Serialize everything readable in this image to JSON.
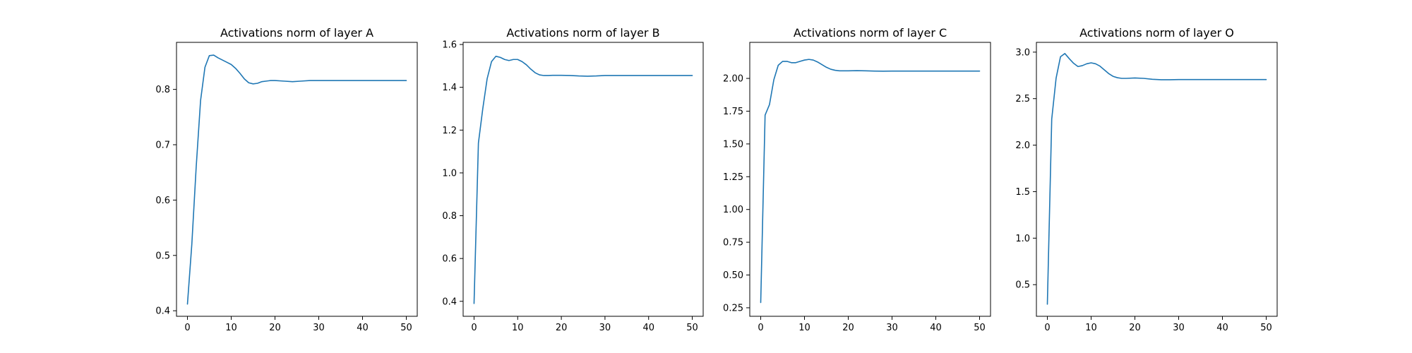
{
  "figure": {
    "line_color": "#1f77b4",
    "axes_color": "#000000",
    "background": "#ffffff"
  },
  "chart_data": [
    {
      "type": "line",
      "title": "Activations norm of layer A",
      "xlabel": "",
      "ylabel": "",
      "xlim": [
        -2.5,
        52.5
      ],
      "ylim": [
        0.39,
        0.885
      ],
      "xticks": [
        0,
        10,
        20,
        30,
        40,
        50
      ],
      "yticks": [
        0.4,
        0.5,
        0.6,
        0.7,
        0.8
      ],
      "ytick_labels": [
        "0.4",
        "0.5",
        "0.6",
        "0.7",
        "0.8"
      ],
      "grid": false,
      "series": [
        {
          "x": [
            0,
            1,
            2,
            3,
            4,
            5,
            6,
            7,
            8,
            9,
            10,
            11,
            12,
            13,
            14,
            15,
            16,
            17,
            18,
            19,
            20,
            22,
            24,
            26,
            28,
            30,
            35,
            40,
            45,
            50
          ],
          "y": [
            0.412,
            0.52,
            0.66,
            0.78,
            0.84,
            0.861,
            0.862,
            0.857,
            0.853,
            0.849,
            0.845,
            0.838,
            0.829,
            0.819,
            0.812,
            0.81,
            0.811,
            0.814,
            0.815,
            0.816,
            0.816,
            0.815,
            0.814,
            0.815,
            0.816,
            0.816,
            0.816,
            0.816,
            0.816,
            0.816
          ]
        }
      ]
    },
    {
      "type": "line",
      "title": "Activations norm of layer B",
      "xlabel": "",
      "ylabel": "",
      "xlim": [
        -2.5,
        52.5
      ],
      "ylim": [
        0.33,
        1.61
      ],
      "xticks": [
        0,
        10,
        20,
        30,
        40,
        50
      ],
      "yticks": [
        0.4,
        0.6,
        0.8,
        1.0,
        1.2,
        1.4,
        1.6
      ],
      "ytick_labels": [
        "0.4",
        "0.6",
        "0.8",
        "1.0",
        "1.2",
        "1.4",
        "1.6"
      ],
      "grid": false,
      "series": [
        {
          "x": [
            0,
            1,
            2,
            3,
            4,
            5,
            6,
            7,
            8,
            9,
            10,
            11,
            12,
            13,
            14,
            15,
            16,
            17,
            18,
            20,
            22,
            24,
            26,
            28,
            30,
            35,
            40,
            45,
            50
          ],
          "y": [
            0.39,
            1.14,
            1.3,
            1.44,
            1.52,
            1.545,
            1.54,
            1.53,
            1.525,
            1.53,
            1.53,
            1.52,
            1.505,
            1.485,
            1.468,
            1.458,
            1.455,
            1.455,
            1.456,
            1.456,
            1.455,
            1.453,
            1.452,
            1.453,
            1.455,
            1.455,
            1.455,
            1.455,
            1.455
          ]
        }
      ]
    },
    {
      "type": "line",
      "title": "Activations norm of layer C",
      "xlabel": "",
      "ylabel": "",
      "xlim": [
        -2.5,
        52.5
      ],
      "ylim": [
        0.185,
        2.275
      ],
      "xticks": [
        0,
        10,
        20,
        30,
        40,
        50
      ],
      "yticks": [
        0.25,
        0.5,
        0.75,
        1.0,
        1.25,
        1.5,
        1.75,
        2.0
      ],
      "ytick_labels": [
        "0.25",
        "0.50",
        "0.75",
        "1.00",
        "1.25",
        "1.50",
        "1.75",
        "2.00"
      ],
      "grid": false,
      "series": [
        {
          "x": [
            0,
            1,
            2,
            3,
            4,
            5,
            6,
            7,
            8,
            9,
            10,
            11,
            12,
            13,
            14,
            15,
            16,
            17,
            18,
            19,
            20,
            22,
            24,
            26,
            28,
            30,
            35,
            40,
            45,
            50
          ],
          "y": [
            0.29,
            1.72,
            1.8,
            1.99,
            2.1,
            2.13,
            2.13,
            2.12,
            2.12,
            2.13,
            2.14,
            2.145,
            2.14,
            2.125,
            2.105,
            2.085,
            2.07,
            2.062,
            2.058,
            2.058,
            2.058,
            2.059,
            2.058,
            2.056,
            2.055,
            2.056,
            2.056,
            2.056,
            2.056,
            2.056
          ]
        }
      ]
    },
    {
      "type": "line",
      "title": "Activations norm of layer O",
      "xlabel": "",
      "ylabel": "",
      "xlim": [
        -2.5,
        52.5
      ],
      "ylim": [
        0.16,
        3.105
      ],
      "xticks": [
        0,
        10,
        20,
        30,
        40,
        50
      ],
      "yticks": [
        0.5,
        1.0,
        1.5,
        2.0,
        2.5,
        3.0
      ],
      "ytick_labels": [
        "0.5",
        "1.0",
        "1.5",
        "2.0",
        "2.5",
        "3.0"
      ],
      "grid": false,
      "series": [
        {
          "x": [
            0,
            1,
            2,
            3,
            4,
            5,
            6,
            7,
            8,
            9,
            10,
            11,
            12,
            13,
            14,
            15,
            16,
            17,
            18,
            20,
            22,
            24,
            26,
            28,
            30,
            35,
            40,
            45,
            50
          ],
          "y": [
            0.29,
            2.28,
            2.72,
            2.95,
            2.985,
            2.93,
            2.88,
            2.845,
            2.855,
            2.875,
            2.885,
            2.875,
            2.85,
            2.81,
            2.77,
            2.74,
            2.725,
            2.718,
            2.718,
            2.722,
            2.718,
            2.708,
            2.703,
            2.703,
            2.705,
            2.705,
            2.705,
            2.705,
            2.705
          ]
        }
      ]
    }
  ]
}
